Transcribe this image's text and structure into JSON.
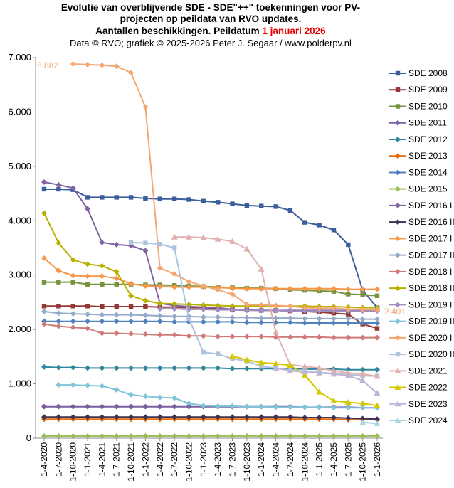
{
  "chart_data": {
    "type": "line",
    "title_lines": [
      "Evolutie van overblijvende SDE - SDE\"++\"  toekenningen  voor PV-",
      "projecten op peildata van RVO updates."
    ],
    "title_line3": "Aantallen beschikkingen.  Peildatum",
    "title_highlight": "1 januari 2026",
    "subtitle": "Data © RVO; grafiek © 2025-2026 Peter J. Segaar / www.polderpv.nl",
    "annotations": [
      "6.882",
      "2.401"
    ],
    "categories": [
      "1-4-2020",
      "1-7-2020",
      "1-10-2020",
      "1-1-2021",
      "1-4-2021",
      "1-7-2021",
      "1-10-2021",
      "1-1-2022",
      "1-4-2022",
      "1-7-2022",
      "1-10-2022",
      "1-1-2023",
      "1-4-2023",
      "1-7-2023",
      "1-10-2023",
      "1-1-2024",
      "1-4-2024",
      "1-7-2024",
      "1-10-2024",
      "1-1-2025",
      "1-4-2025",
      "1-7-2025",
      "1-10-2025",
      "1-1-2026"
    ],
    "ylim": [
      0,
      7000
    ],
    "yticks": [
      0,
      {
        "value": 1000,
        "label": "1.000"
      },
      {
        "value": 2000,
        "label": "2.000"
      },
      {
        "value": 3000,
        "label": "3.000"
      },
      {
        "value": 4000,
        "label": "4.000"
      },
      {
        "value": 5000,
        "label": "5.000"
      },
      {
        "value": 6000,
        "label": "6.000"
      },
      {
        "value": 7000,
        "label": "7.000"
      }
    ],
    "grid": false,
    "series": [
      {
        "name": "SDE 2008",
        "color": "#3a5f9c",
        "marker": "square",
        "values": [
          4580,
          4580,
          4570,
          4430,
          4430,
          4430,
          4430,
          4410,
          4400,
          4400,
          4390,
          4360,
          4340,
          4310,
          4280,
          4270,
          4260,
          4190,
          3970,
          3920,
          3830,
          3560,
          2720,
          2401
        ]
      },
      {
        "name": "SDE 2009",
        "color": "#953735",
        "marker": "square",
        "values": [
          2430,
          2430,
          2430,
          2430,
          2420,
          2420,
          2420,
          2420,
          2410,
          2410,
          2400,
          2400,
          2390,
          2370,
          2360,
          2350,
          2350,
          2340,
          2330,
          2320,
          2300,
          2280,
          2100,
          2020
        ]
      },
      {
        "name": "SDE 2010",
        "color": "#77933c",
        "marker": "square",
        "values": [
          2870,
          2870,
          2870,
          2830,
          2830,
          2830,
          2830,
          2820,
          2820,
          2810,
          2800,
          2790,
          2780,
          2770,
          2760,
          2760,
          2750,
          2730,
          2720,
          2710,
          2700,
          2650,
          2640,
          2620
        ]
      },
      {
        "name": "SDE 2011",
        "color": "#7a5fa0",
        "marker": "diamond",
        "values": [
          580,
          580,
          580,
          580,
          580,
          580,
          580,
          580,
          580,
          580,
          580,
          580,
          580,
          580,
          580,
          580,
          580,
          580,
          570,
          570,
          570,
          570,
          560,
          560
        ]
      },
      {
        "name": "SDE 2012",
        "color": "#31859c",
        "marker": "diamond",
        "values": [
          1310,
          1300,
          1300,
          1290,
          1290,
          1290,
          1290,
          1290,
          1290,
          1290,
          1290,
          1290,
          1290,
          1280,
          1280,
          1280,
          1280,
          1280,
          1270,
          1270,
          1270,
          1260,
          1260,
          1260
        ]
      },
      {
        "name": "SDE 2013",
        "color": "#e46c0a",
        "marker": "diamond",
        "values": [
          350,
          350,
          350,
          350,
          350,
          350,
          350,
          350,
          350,
          350,
          350,
          350,
          350,
          350,
          350,
          350,
          350,
          350,
          350,
          350,
          350,
          340,
          340,
          340
        ]
      },
      {
        "name": "SDE 2014",
        "color": "#4f81bd",
        "marker": "diamond",
        "values": [
          2150,
          2150,
          2150,
          2150,
          2150,
          2150,
          2150,
          2150,
          2150,
          2140,
          2140,
          2140,
          2140,
          2140,
          2130,
          2130,
          2130,
          2130,
          2120,
          2120,
          2120,
          2120,
          2120,
          2120
        ]
      },
      {
        "name": "SDE 2015",
        "color": "#9bbb59",
        "marker": "diamond",
        "values": [
          40,
          40,
          40,
          40,
          40,
          40,
          40,
          40,
          40,
          40,
          40,
          40,
          40,
          40,
          40,
          40,
          40,
          40,
          40,
          40,
          40,
          40,
          40,
          40
        ]
      },
      {
        "name": "SDE 2016 I",
        "color": "#8064a2",
        "marker": "diamond",
        "values": [
          4710,
          4660,
          4600,
          4220,
          3600,
          3560,
          3540,
          3450,
          2480,
          2440,
          2420,
          2410,
          2400,
          2370,
          2360,
          2350,
          2350,
          2350,
          2350,
          2350,
          2350,
          2350,
          2350,
          2350
        ]
      },
      {
        "name": "SDE 2016 II",
        "color": "#3f3151",
        "marker": "diamond",
        "values": [
          390,
          390,
          390,
          390,
          390,
          390,
          390,
          390,
          390,
          390,
          390,
          390,
          390,
          390,
          390,
          390,
          390,
          390,
          380,
          380,
          380,
          370,
          360,
          350
        ]
      },
      {
        "name": "SDE 2017 I",
        "color": "#f79646",
        "marker": "diamond",
        "values": [
          3310,
          3080,
          2990,
          2980,
          2980,
          2940,
          2840,
          2800,
          2790,
          2780,
          2780,
          2780,
          2770,
          2760,
          2750,
          2750,
          2750,
          2750,
          2750,
          2750,
          2750,
          2740,
          2740,
          2740
        ]
      },
      {
        "name": "SDE 2017 II",
        "color": "#95a9c9",
        "marker": "diamond",
        "values": [
          2330,
          2300,
          2290,
          2280,
          2270,
          2270,
          2270,
          2260,
          2250,
          2240,
          2240,
          2230,
          2230,
          2220,
          2220,
          2210,
          2210,
          2210,
          2200,
          2200,
          2200,
          2200,
          2190,
          2190
        ]
      },
      {
        "name": "SDE 2018 I",
        "color": "#d07a78",
        "marker": "diamond",
        "values": [
          2100,
          2060,
          2040,
          2020,
          1930,
          1930,
          1920,
          1910,
          1900,
          1900,
          1880,
          1880,
          1870,
          1870,
          1870,
          1870,
          1860,
          1860,
          1860,
          1860,
          1850,
          1850,
          1850,
          1850
        ]
      },
      {
        "name": "SDE 2018 II",
        "color": "#b8b000",
        "marker": "diamond",
        "values": [
          4140,
          3590,
          3280,
          3200,
          3170,
          3060,
          2620,
          2530,
          2480,
          2470,
          2460,
          2450,
          2440,
          2430,
          2430,
          2430,
          2430,
          2430,
          2430,
          2420,
          2420,
          2410,
          2400,
          2400
        ]
      },
      {
        "name": "SDE 2019 I",
        "color": "#a08cc0",
        "marker": "diamond",
        "values": [
          null,
          null,
          null,
          null,
          null,
          null,
          null,
          null,
          2380,
          2380,
          2370,
          2370,
          2360,
          2360,
          2350,
          2350,
          2350,
          2340,
          2340,
          2340,
          2340,
          2340,
          2340,
          2340
        ]
      },
      {
        "name": "SDE 2019 II",
        "color": "#7fc4d8",
        "marker": "diamond",
        "values": [
          null,
          980,
          980,
          970,
          960,
          890,
          800,
          770,
          750,
          740,
          640,
          600,
          590,
          590,
          580,
          580,
          570,
          570,
          570,
          570,
          560,
          560,
          560,
          560
        ]
      },
      {
        "name": "SDE 2020 I",
        "color": "#f5a672",
        "marker": "diamond",
        "values": [
          null,
          null,
          6882,
          6870,
          6860,
          6840,
          6720,
          6090,
          3130,
          3020,
          2880,
          2800,
          2730,
          2650,
          2460,
          2450,
          2440,
          2430,
          2400,
          2390,
          2390,
          2370,
          2370,
          2360
        ]
      },
      {
        "name": "SDE 2020 II",
        "color": "#adc3e0",
        "marker": "square",
        "values": [
          null,
          null,
          null,
          null,
          null,
          null,
          3600,
          3590,
          3570,
          3500,
          2200,
          1580,
          1550,
          1460,
          1420,
          1320,
          1290,
          1250,
          1230,
          1210,
          1190,
          1170,
          1150,
          1140
        ]
      },
      {
        "name": "SDE 2021",
        "color": "#e0b0ae",
        "marker": "triangle",
        "values": [
          null,
          null,
          null,
          null,
          null,
          null,
          null,
          null,
          null,
          3700,
          3700,
          3690,
          3660,
          3620,
          3480,
          3110,
          1950,
          1350,
          1320,
          1290,
          1240,
          1200,
          1180,
          1140
        ]
      },
      {
        "name": "SDE 2022",
        "color": "#d4c800",
        "marker": "triangle",
        "values": [
          null,
          null,
          null,
          null,
          null,
          null,
          null,
          null,
          null,
          null,
          null,
          null,
          null,
          1510,
          1440,
          1390,
          1370,
          1340,
          1160,
          850,
          690,
          660,
          640,
          600
        ]
      },
      {
        "name": "SDE 2023",
        "color": "#bfb4d6",
        "marker": "triangle",
        "values": [
          null,
          null,
          null,
          null,
          null,
          null,
          null,
          null,
          null,
          null,
          null,
          null,
          null,
          null,
          null,
          null,
          1290,
          1240,
          1220,
          1200,
          1180,
          1150,
          1060,
          830
        ]
      },
      {
        "name": "SDE 2024",
        "color": "#a9d6e4",
        "marker": "triangle",
        "values": [
          null,
          null,
          null,
          null,
          null,
          null,
          null,
          null,
          null,
          null,
          null,
          null,
          null,
          null,
          null,
          null,
          null,
          null,
          null,
          null,
          null,
          null,
          290,
          270
        ]
      }
    ]
  }
}
